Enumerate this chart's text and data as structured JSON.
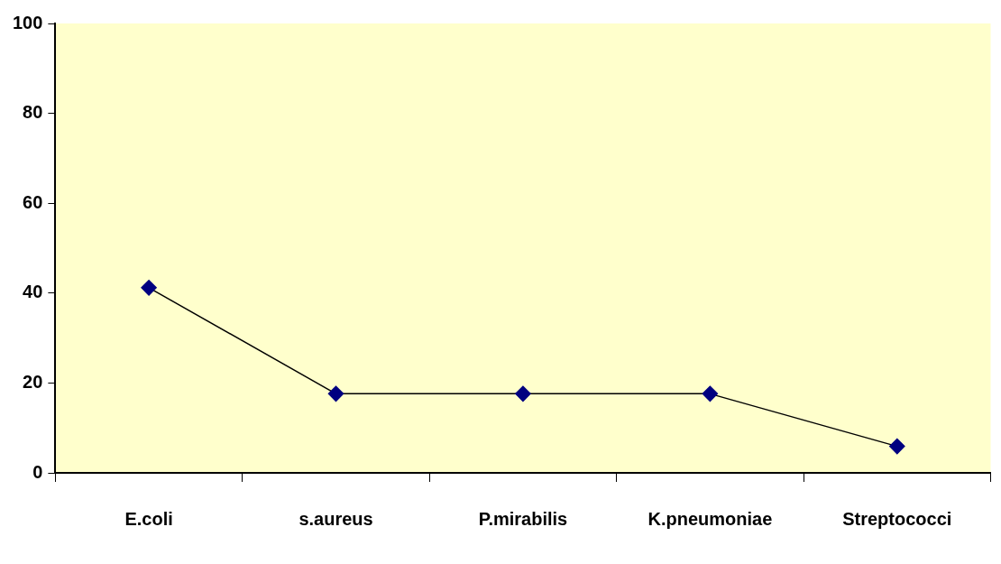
{
  "chart_data": {
    "type": "line",
    "categories": [
      "E.coli",
      "s.aureus",
      "P.mirabilis",
      "K.pneumoniae",
      "Streptococci"
    ],
    "series": [
      {
        "color": "#000080",
        "values": [
          41.2,
          17.6,
          17.6,
          17.6,
          5.9
        ]
      }
    ],
    "ylim": [
      0,
      100
    ],
    "yticks": [
      0,
      20,
      40,
      60,
      80,
      100
    ],
    "grid": false,
    "legend": false,
    "marker": "diamond",
    "line_style": "solid"
  }
}
